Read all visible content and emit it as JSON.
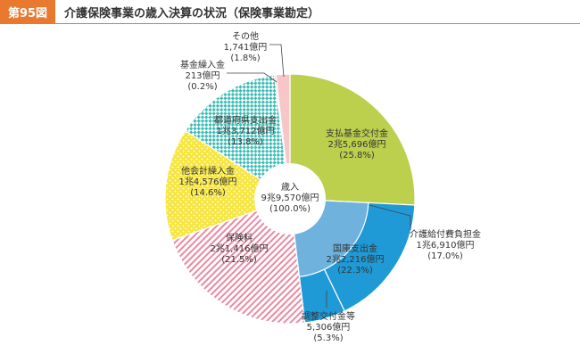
{
  "header": {
    "figure_label": "第95図",
    "title": "介護保険事業の歳入決算の状況（保険事業勘定）"
  },
  "colors": {
    "accent": "#e8792f",
    "shihara": "#bcd04e",
    "kaigo": "#1f9ad6",
    "kokko": "#6fb2dd",
    "chosei": "#1f9ad6",
    "hokenryo": "#e88aa3",
    "tasoukei": "#f7e63c",
    "todofuken": "#3bbcb4",
    "kikin": "#f3a1b7",
    "other": "#f6c6c9"
  },
  "chart_data": {
    "type": "pie",
    "title": "介護保険事業の歳入決算の状況（保険事業勘定）",
    "center": {
      "label": "歳入",
      "amount": "9兆9,570億円",
      "pct": "(100.0%)"
    },
    "slices": [
      {
        "key": "shihara",
        "name": "支払基金交付金",
        "amount": "2兆5,696億円",
        "pct_label": "(25.8%)",
        "value": 25.8,
        "color_key": "shihara",
        "pattern": "solid"
      },
      {
        "key": "kaigo",
        "name": "介護給付費負担金",
        "amount": "1兆6,910億円",
        "pct_label": "(17.0%)",
        "value": 17.0,
        "color_key": "kaigo",
        "pattern": "solid"
      },
      {
        "key": "chosei",
        "name": "調整交付金等",
        "amount": "5,306億円",
        "pct_label": "(5.3%)",
        "value": 5.3,
        "color_key": "chosei",
        "pattern": "solid"
      },
      {
        "key": "hokenryo",
        "name": "保険料",
        "amount": "2兆1,416億円",
        "pct_label": "(21.5%)",
        "value": 21.5,
        "color_key": "hokenryo",
        "pattern": "stripe"
      },
      {
        "key": "tasoukei",
        "name": "他会計繰入金",
        "amount": "1兆4,576億円",
        "pct_label": "(14.6%)",
        "value": 14.6,
        "color_key": "tasoukei",
        "pattern": "dots"
      },
      {
        "key": "todofuken",
        "name": "都道府県支出金",
        "amount": "1兆3,712億円",
        "pct_label": "(13.8%)",
        "value": 13.8,
        "color_key": "todofuken",
        "pattern": "check"
      },
      {
        "key": "kikin",
        "name": "基金繰入金",
        "amount": "213億円",
        "pct_label": "(0.2%)",
        "value": 0.2,
        "color_key": "kikin",
        "pattern": "solid"
      },
      {
        "key": "other",
        "name": "その他",
        "amount": "1,741億円",
        "pct_label": "(1.8%)",
        "value": 1.8,
        "color_key": "other",
        "pattern": "solid"
      }
    ],
    "inner_group": {
      "name": "国庫支出金",
      "amount": "2兆2,216億円",
      "pct_label": "(22.3%)",
      "value": 22.3,
      "color_key": "kokko",
      "members": [
        "kaigo",
        "chosei"
      ]
    }
  }
}
